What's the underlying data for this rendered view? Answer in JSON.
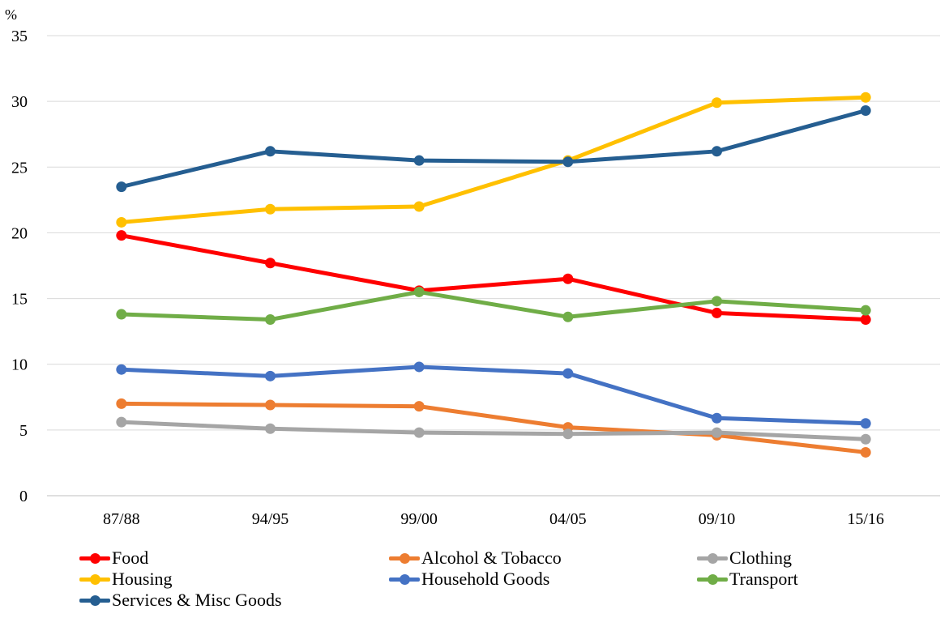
{
  "chart_data": {
    "type": "line",
    "unit_label": "%",
    "categories": [
      "87/88",
      "94/95",
      "99/00",
      "04/05",
      "09/10",
      "15/16"
    ],
    "ylim": [
      0,
      35
    ],
    "yticks": [
      "0",
      "5",
      "10",
      "15",
      "20",
      "25",
      "30",
      "35"
    ],
    "grid": true,
    "legend_position": "bottom",
    "series": [
      {
        "name": "Food",
        "color": "#FF0000",
        "values": [
          19.8,
          17.7,
          15.6,
          16.5,
          13.9,
          13.4
        ]
      },
      {
        "name": "Alcohol & Tobacco",
        "color": "#ED7D31",
        "values": [
          7.0,
          6.9,
          6.8,
          5.2,
          4.6,
          3.3
        ]
      },
      {
        "name": "Clothing",
        "color": "#A5A5A5",
        "values": [
          5.6,
          5.1,
          4.8,
          4.7,
          4.8,
          4.3
        ]
      },
      {
        "name": "Housing",
        "color": "#FFC000",
        "values": [
          20.8,
          21.8,
          22.0,
          25.5,
          29.9,
          30.3
        ]
      },
      {
        "name": "Household Goods",
        "color": "#4472C4",
        "values": [
          9.6,
          9.1,
          9.8,
          9.3,
          5.9,
          5.5
        ]
      },
      {
        "name": "Transport",
        "color": "#70AD47",
        "values": [
          13.8,
          13.4,
          15.5,
          13.6,
          14.8,
          14.1
        ]
      },
      {
        "name": "Services & Misc Goods",
        "color": "#255E91",
        "values": [
          23.5,
          26.2,
          25.5,
          25.4,
          26.2,
          29.3
        ]
      }
    ]
  }
}
